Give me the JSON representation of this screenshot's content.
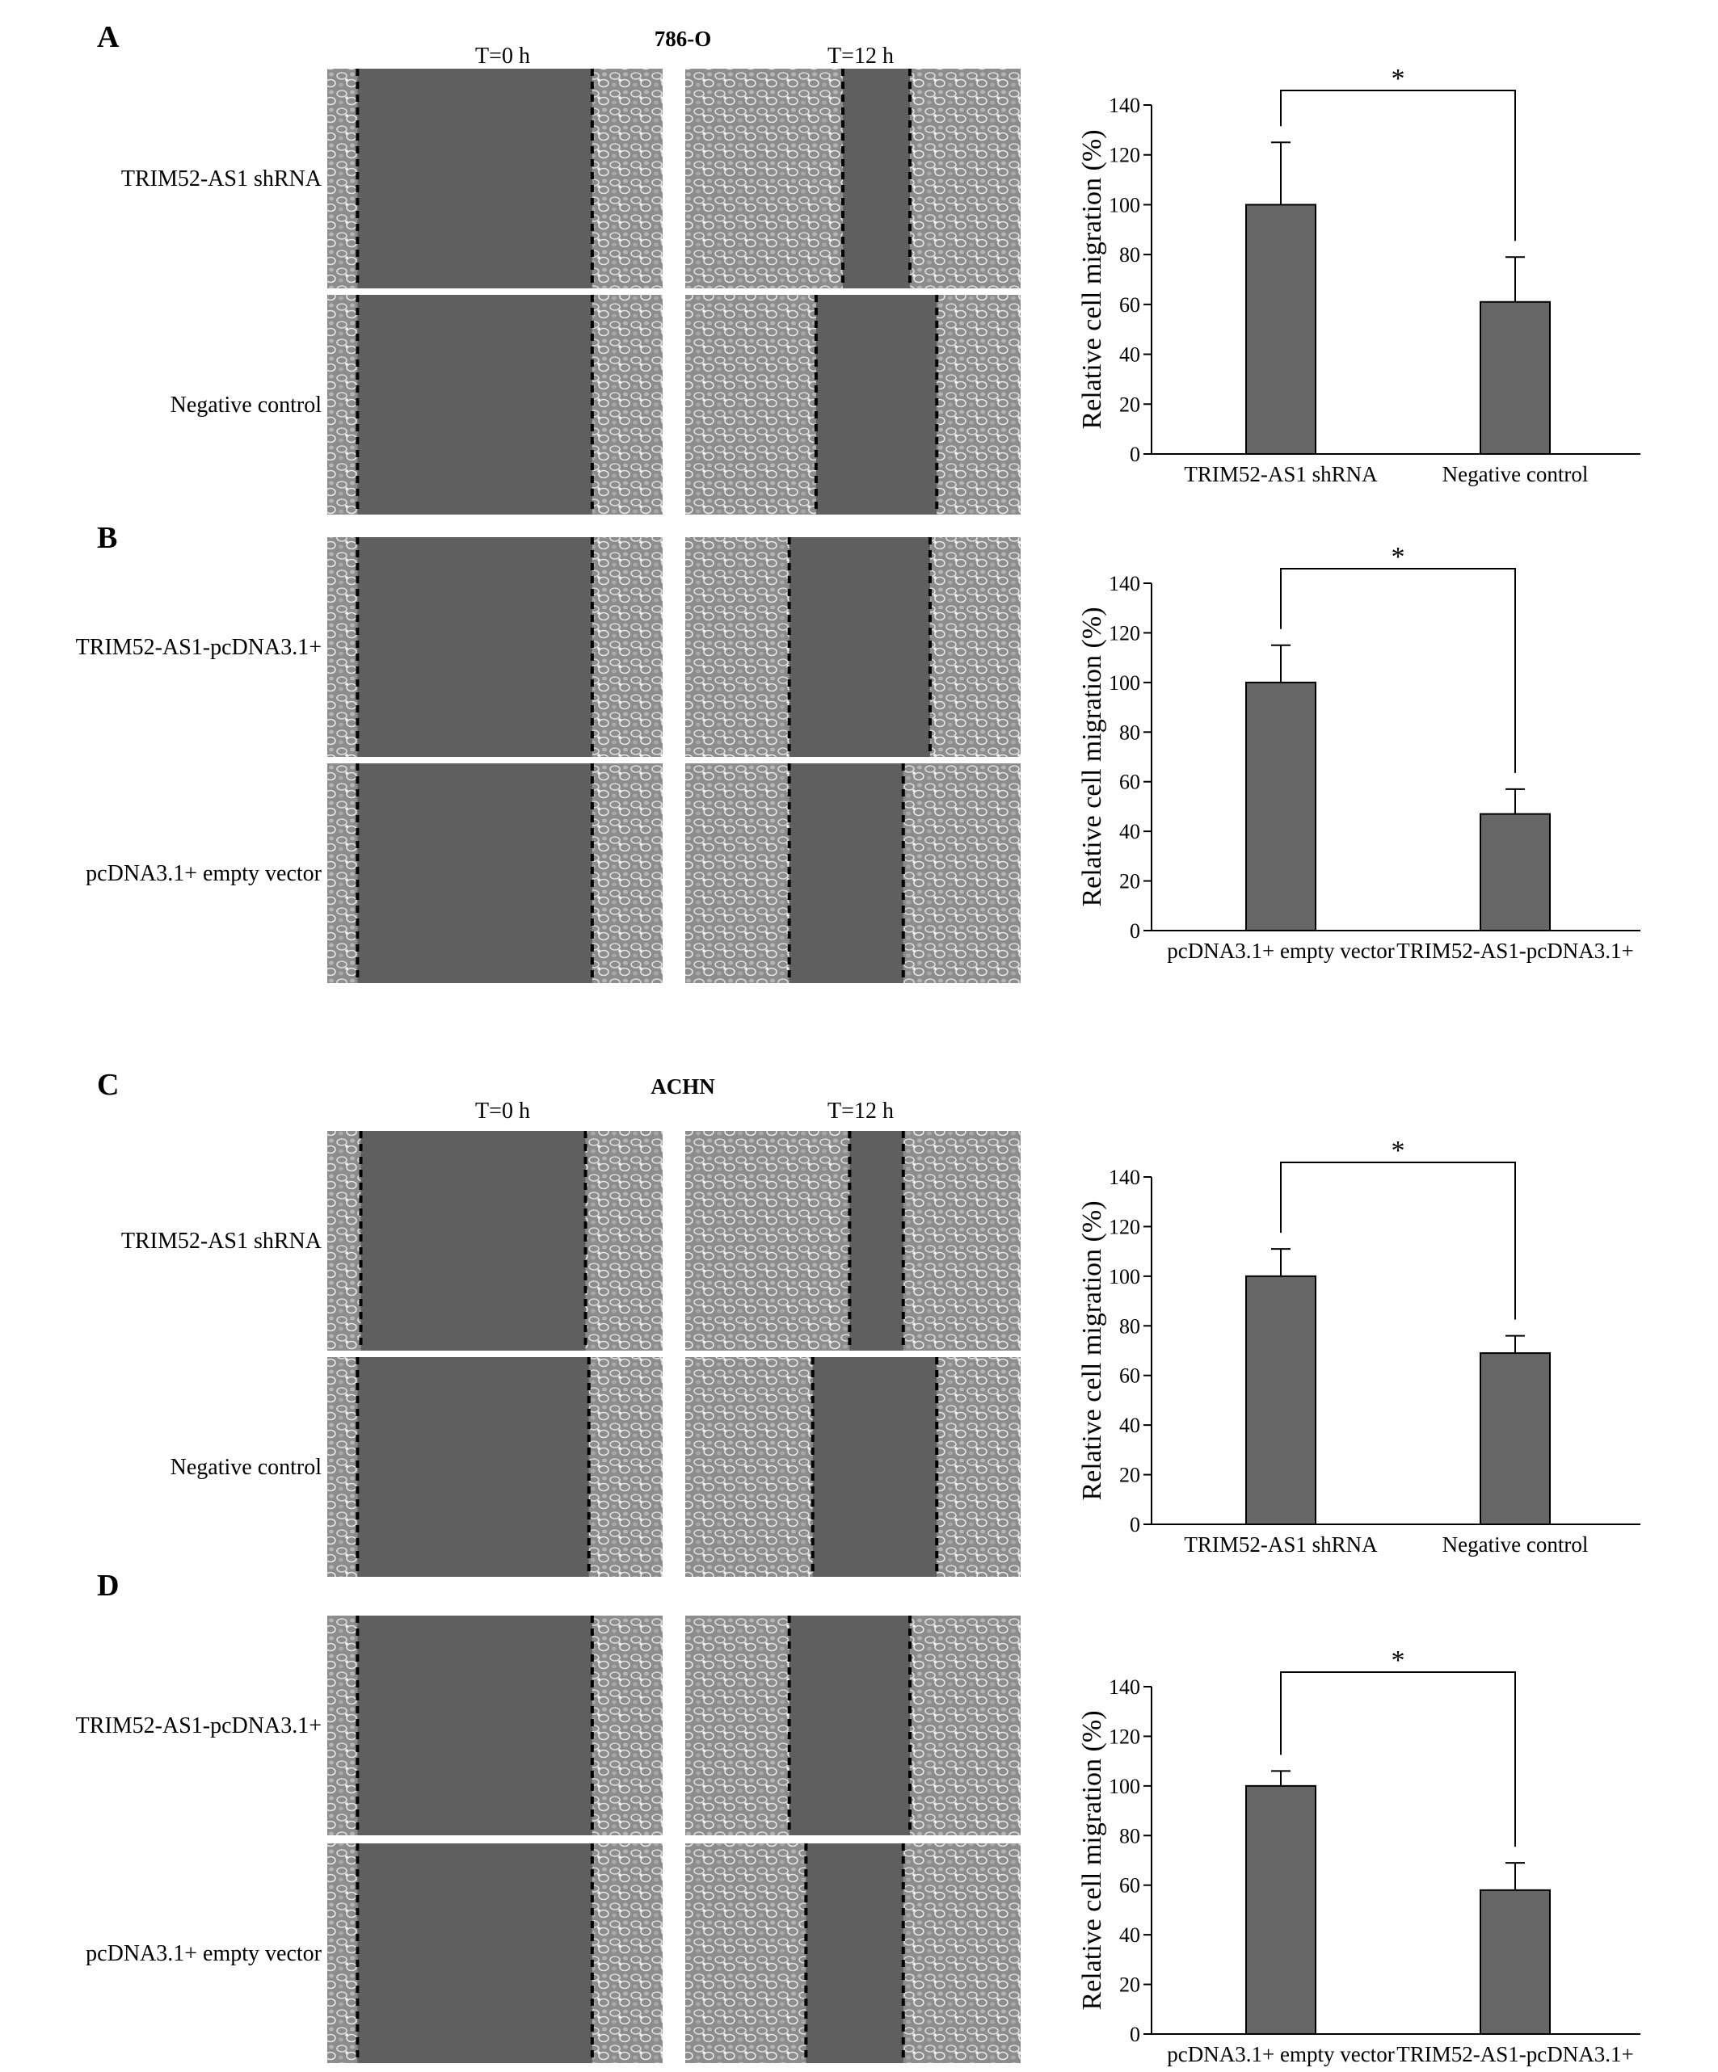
{
  "panels": [
    {
      "letter": "A",
      "cell_line": "786-O",
      "time_labels": [
        "T=0 h",
        "T=12 h"
      ],
      "row_labels": [
        "TRIM52-AS1 shRNA",
        "Negative control"
      ],
      "micrographs": [
        {
          "gap_0h": [
            0.09,
            0.79
          ],
          "gap_12h": [
            0.47,
            0.67
          ]
        },
        {
          "gap_0h": [
            0.09,
            0.79
          ],
          "gap_12h": [
            0.39,
            0.75
          ]
        }
      ]
    },
    {
      "letter": "B",
      "cell_line": "",
      "time_labels": [],
      "row_labels": [
        "TRIM52-AS1-pcDNA3.1+",
        "pcDNA3.1+ empty  vector"
      ],
      "micrographs": [
        {
          "gap_0h": [
            0.09,
            0.79
          ],
          "gap_12h": [
            0.31,
            0.73
          ]
        },
        {
          "gap_0h": [
            0.09,
            0.79
          ],
          "gap_12h": [
            0.31,
            0.65
          ]
        }
      ]
    },
    {
      "letter": "C",
      "cell_line": "ACHN",
      "time_labels": [
        "T=0 h",
        "T=12 h"
      ],
      "row_labels": [
        "TRIM52-AS1 shRNA",
        "Negative control"
      ],
      "micrographs": [
        {
          "gap_0h": [
            0.1,
            0.77
          ],
          "gap_12h": [
            0.49,
            0.65
          ]
        },
        {
          "gap_0h": [
            0.09,
            0.78
          ],
          "gap_12h": [
            0.38,
            0.75
          ]
        }
      ]
    },
    {
      "letter": "D",
      "cell_line": "",
      "time_labels": [],
      "row_labels": [
        "TRIM52-AS1-pcDNA3.1+",
        "pcDNA3.1+ empty  vector"
      ],
      "micrographs": [
        {
          "gap_0h": [
            0.09,
            0.79
          ],
          "gap_12h": [
            0.31,
            0.67
          ]
        },
        {
          "gap_0h": [
            0.09,
            0.79
          ],
          "gap_12h": [
            0.36,
            0.65
          ]
        }
      ]
    }
  ],
  "chart_data": [
    {
      "type": "bar",
      "panel": "A",
      "categories": [
        "TRIM52-AS1 shRNA",
        "Negative control"
      ],
      "values": [
        100,
        61
      ],
      "errors": [
        25,
        18
      ],
      "ylabel": "Relative cell migration (%)",
      "ylim": [
        0,
        140
      ],
      "yticks": [
        0,
        20,
        40,
        60,
        80,
        100,
        120,
        140
      ],
      "significance": "*",
      "bar_color": "#666666"
    },
    {
      "type": "bar",
      "panel": "B",
      "categories": [
        "pcDNA3.1+ empty  vector",
        "TRIM52-AS1-pcDNA3.1+"
      ],
      "values": [
        100,
        47
      ],
      "errors": [
        15,
        10
      ],
      "ylabel": "Relative cell migration (%)",
      "ylim": [
        0,
        140
      ],
      "yticks": [
        0,
        20,
        40,
        60,
        80,
        100,
        120,
        140
      ],
      "significance": "*",
      "bar_color": "#666666"
    },
    {
      "type": "bar",
      "panel": "C",
      "categories": [
        "TRIM52-AS1 shRNA",
        "Negative control"
      ],
      "values": [
        100,
        69
      ],
      "errors": [
        11,
        7
      ],
      "ylabel": "Relative cell migration (%)",
      "ylim": [
        0,
        140
      ],
      "yticks": [
        0,
        20,
        40,
        60,
        80,
        100,
        120,
        140
      ],
      "significance": "*",
      "bar_color": "#666666"
    },
    {
      "type": "bar",
      "panel": "D",
      "categories": [
        "pcDNA3.1+ empty  vector",
        "TRIM52-AS1-pcDNA3.1+"
      ],
      "values": [
        100,
        58
      ],
      "errors": [
        6,
        11
      ],
      "ylabel": "Relative cell migration (%)",
      "ylim": [
        0,
        140
      ],
      "yticks": [
        0,
        20,
        40,
        60,
        80,
        100,
        120,
        140
      ],
      "significance": "*",
      "bar_color": "#666666"
    }
  ]
}
